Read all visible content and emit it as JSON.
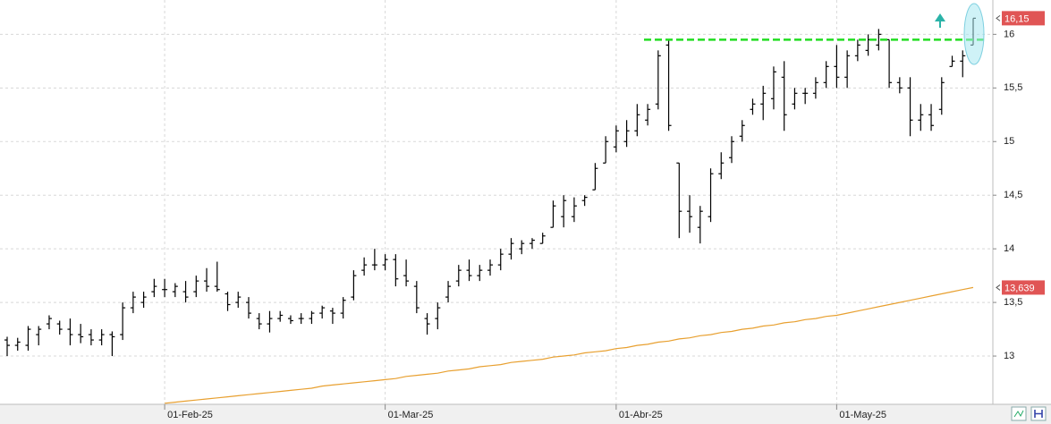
{
  "chart_data": {
    "type": "ohlc",
    "ylim": [
      12.55,
      16.32
    ],
    "yticks": [
      13,
      {
        "value": 13.5,
        "label": "13,5"
      },
      14,
      {
        "value": 14.5,
        "label": "14,5"
      },
      15,
      {
        "value": 15.5,
        "label": "15,5"
      },
      16
    ],
    "grid": true,
    "categories": [
      null,
      null,
      null,
      null,
      null,
      null,
      null,
      null,
      null,
      null,
      null,
      null,
      null,
      null,
      null,
      "01-Feb-25",
      null,
      null,
      null,
      null,
      null,
      null,
      null,
      null,
      null,
      null,
      null,
      null,
      null,
      null,
      null,
      null,
      null,
      null,
      null,
      null,
      "01-Mar-25",
      null,
      null,
      null,
      null,
      null,
      null,
      null,
      null,
      null,
      null,
      null,
      null,
      null,
      null,
      null,
      null,
      null,
      null,
      null,
      null,
      null,
      "01-Abr-25",
      null,
      null,
      null,
      null,
      null,
      null,
      null,
      null,
      null,
      null,
      null,
      null,
      null,
      null,
      null,
      null,
      null,
      null,
      null,
      null,
      "01-May-25",
      null,
      null,
      null,
      null,
      null,
      null,
      null,
      null,
      null,
      null,
      null,
      null,
      null
    ],
    "color": "#000000",
    "high": [
      13.18,
      13.17,
      13.28,
      13.28,
      13.38,
      13.33,
      13.35,
      13.3,
      13.25,
      13.25,
      13.23,
      13.5,
      13.6,
      13.6,
      13.72,
      13.72,
      13.68,
      13.7,
      13.75,
      13.82,
      13.88,
      13.6,
      13.6,
      13.55,
      13.4,
      13.42,
      13.42,
      13.38,
      13.4,
      13.42,
      13.47,
      13.45,
      13.55,
      13.8,
      13.92,
      14.0,
      13.95,
      13.95,
      13.9,
      13.7,
      13.4,
      13.5,
      13.7,
      13.85,
      13.9,
      13.85,
      13.9,
      14.0,
      14.1,
      14.08,
      14.1,
      14.15,
      14.45,
      14.5,
      14.48,
      14.5,
      14.8,
      15.05,
      15.15,
      15.2,
      15.35,
      15.35,
      15.85,
      15.95,
      14.8,
      14.5,
      14.4,
      14.75,
      14.9,
      15.05,
      15.2,
      15.4,
      15.52,
      15.7,
      15.75,
      15.5,
      15.5,
      15.6,
      15.75,
      15.9,
      15.85,
      15.95,
      16.0,
      16.05,
      15.95,
      15.6,
      15.6,
      15.35,
      15.35,
      15.6,
      15.8,
      15.85,
      16.15
    ],
    "low": [
      13.0,
      13.05,
      13.05,
      13.1,
      13.25,
      13.2,
      13.1,
      13.12,
      13.1,
      13.1,
      13.0,
      13.15,
      13.4,
      13.45,
      13.55,
      13.55,
      13.55,
      13.5,
      13.55,
      13.6,
      13.6,
      13.42,
      13.45,
      13.35,
      13.25,
      13.22,
      13.32,
      13.3,
      13.3,
      13.3,
      13.35,
      13.3,
      13.35,
      13.52,
      13.75,
      13.8,
      13.8,
      13.65,
      13.65,
      13.4,
      13.2,
      13.25,
      13.5,
      13.65,
      13.7,
      13.7,
      13.75,
      13.8,
      13.9,
      13.95,
      14.0,
      14.05,
      14.2,
      14.2,
      14.25,
      14.4,
      14.55,
      14.8,
      14.9,
      14.95,
      15.05,
      15.15,
      15.3,
      15.1,
      14.1,
      14.15,
      14.05,
      14.25,
      14.65,
      14.8,
      15.0,
      15.25,
      15.2,
      15.3,
      15.1,
      15.3,
      15.35,
      15.4,
      15.5,
      15.5,
      15.5,
      15.75,
      15.8,
      15.85,
      15.5,
      15.45,
      15.05,
      15.1,
      15.1,
      15.25,
      15.7,
      15.6,
      15.9
    ],
    "open": [
      13.15,
      13.1,
      13.1,
      13.2,
      13.3,
      13.3,
      13.25,
      13.2,
      13.2,
      13.15,
      13.2,
      13.2,
      13.45,
      13.5,
      13.6,
      13.62,
      13.6,
      13.6,
      13.6,
      13.7,
      13.65,
      13.58,
      13.5,
      13.5,
      13.35,
      13.3,
      13.35,
      13.35,
      13.35,
      13.35,
      13.4,
      13.42,
      13.4,
      13.55,
      13.8,
      13.85,
      13.85,
      13.9,
      13.75,
      13.65,
      13.35,
      13.35,
      13.55,
      13.7,
      13.8,
      13.75,
      13.8,
      13.85,
      13.95,
      14.0,
      14.05,
      14.05,
      14.2,
      14.3,
      14.3,
      14.45,
      14.55,
      14.8,
      14.95,
      15.0,
      15.1,
      15.2,
      15.35,
      15.9,
      14.8,
      14.35,
      14.2,
      14.3,
      14.7,
      14.85,
      15.05,
      15.3,
      15.35,
      15.4,
      15.6,
      15.35,
      15.45,
      15.45,
      15.55,
      15.7,
      15.6,
      15.8,
      15.85,
      15.9,
      15.95,
      15.55,
      15.5,
      15.2,
      15.25,
      15.3,
      15.7,
      15.75,
      15.9
    ],
    "close": [
      13.1,
      13.13,
      13.25,
      13.25,
      13.35,
      13.25,
      13.2,
      13.18,
      13.15,
      13.2,
      13.18,
      13.45,
      13.55,
      13.55,
      13.65,
      13.62,
      13.65,
      13.55,
      13.7,
      13.65,
      13.62,
      13.48,
      13.55,
      13.4,
      13.3,
      13.35,
      13.38,
      13.33,
      13.35,
      13.4,
      13.45,
      13.4,
      13.52,
      13.75,
      13.85,
      13.85,
      13.9,
      13.72,
      13.7,
      13.45,
      13.3,
      13.45,
      13.65,
      13.8,
      13.75,
      13.8,
      13.85,
      13.95,
      14.05,
      14.05,
      14.08,
      14.12,
      14.4,
      14.45,
      14.4,
      14.48,
      14.75,
      15.0,
      15.1,
      15.1,
      15.25,
      15.3,
      15.8,
      15.15,
      14.35,
      14.3,
      14.35,
      14.7,
      14.8,
      15.0,
      15.15,
      15.35,
      15.45,
      15.65,
      15.25,
      15.45,
      15.45,
      15.55,
      15.7,
      15.6,
      15.8,
      15.9,
      15.95,
      16.0,
      15.55,
      15.5,
      15.2,
      15.25,
      15.15,
      15.55,
      15.75,
      15.8,
      16.15
    ],
    "moving_average": {
      "color": "#e8a030",
      "values": [
        null,
        null,
        null,
        null,
        null,
        null,
        null,
        null,
        null,
        null,
        null,
        null,
        null,
        null,
        null,
        12.56,
        12.57,
        12.58,
        12.59,
        12.6,
        12.61,
        12.62,
        12.63,
        12.64,
        12.65,
        12.66,
        12.67,
        12.68,
        12.69,
        12.7,
        12.72,
        12.73,
        12.74,
        12.75,
        12.76,
        12.77,
        12.78,
        12.79,
        12.81,
        12.82,
        12.83,
        12.84,
        12.86,
        12.87,
        12.88,
        12.9,
        12.91,
        12.92,
        12.94,
        12.95,
        12.96,
        12.97,
        12.99,
        13.0,
        13.01,
        13.03,
        13.04,
        13.05,
        13.07,
        13.08,
        13.1,
        13.11,
        13.13,
        13.14,
        13.16,
        13.17,
        13.19,
        13.2,
        13.22,
        13.23,
        13.25,
        13.26,
        13.28,
        13.29,
        13.31,
        13.32,
        13.34,
        13.35,
        13.37,
        13.38,
        13.4,
        13.42,
        13.44,
        13.46,
        13.48,
        13.5,
        13.52,
        13.54,
        13.56,
        13.58,
        13.6,
        13.62,
        13.639
      ]
    },
    "resistance": {
      "value": 15.95,
      "color": "#22dd22"
    },
    "axis_tags": [
      {
        "value": 16.15,
        "label": "16,15",
        "color": "#e05555"
      },
      {
        "value": 13.639,
        "label": "13,639",
        "color": "#e05555"
      }
    ]
  }
}
